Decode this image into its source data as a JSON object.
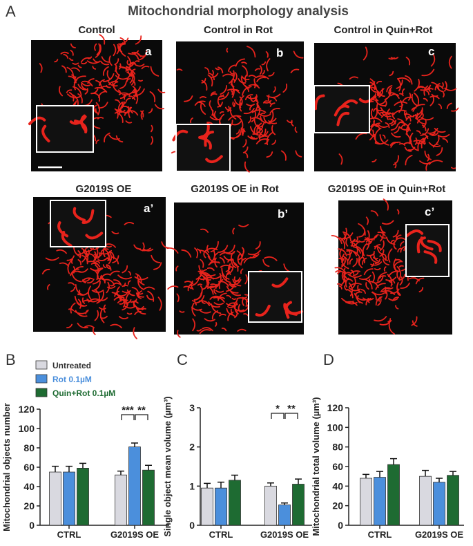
{
  "figure": {
    "title": "Mitochondrial morphology analysis",
    "panel_labels": [
      "A",
      "B",
      "C",
      "D"
    ]
  },
  "images": [
    {
      "title": "Control",
      "label": "a"
    },
    {
      "title": "Control in Rot",
      "label": "b"
    },
    {
      "title": "Control in Quin+Rot",
      "label": "c"
    },
    {
      "title": "G2019S OE",
      "label": "a’"
    },
    {
      "title": "G2019S OE in Rot",
      "label": "b’"
    },
    {
      "title": "G2019S OE in Quin+Rot",
      "label": "c’"
    }
  ],
  "chart_data": [
    {
      "type": "bar",
      "y_label": "Mitochondrial objects number",
      "categories": [
        "CTRL",
        "G2019S OE"
      ],
      "series": [
        {
          "name": "Untreated",
          "color": "#d9d9e0",
          "values": [
            55,
            52
          ],
          "errors": [
            6,
            4
          ]
        },
        {
          "name": "Rot 0.1µM",
          "color": "#4b8fdc",
          "values": [
            55,
            81
          ],
          "errors": [
            6,
            4
          ]
        },
        {
          "name": "Quin+Rot 0.1µM",
          "color": "#1e6b32",
          "values": [
            59,
            57
          ],
          "errors": [
            5,
            5
          ]
        }
      ],
      "ylim": [
        0,
        120
      ],
      "yticks": [
        0,
        20,
        40,
        60,
        80,
        100,
        120
      ],
      "annotations": [
        "***",
        "**"
      ]
    },
    {
      "type": "bar",
      "y_label": "Single object mean volume (µm³)",
      "categories": [
        "CTRL",
        "G2019S OE"
      ],
      "series": [
        {
          "color": "#d9d9e0",
          "values": [
            0.95,
            1.0
          ],
          "errors": [
            0.12,
            0.08
          ]
        },
        {
          "color": "#4b8fdc",
          "values": [
            0.95,
            0.52
          ],
          "errors": [
            0.15,
            0.05
          ]
        },
        {
          "color": "#1e6b32",
          "values": [
            1.15,
            1.05
          ],
          "errors": [
            0.13,
            0.13
          ]
        }
      ],
      "ylim": [
        0,
        3
      ],
      "yticks": [
        0,
        1,
        2,
        3
      ],
      "annotations": [
        "*",
        "**"
      ]
    },
    {
      "type": "bar",
      "y_label": "Mitochondrial total volume (µm³)",
      "categories": [
        "CTRL",
        "G2019S OE"
      ],
      "series": [
        {
          "color": "#d9d9e0",
          "values": [
            48,
            50
          ],
          "errors": [
            4,
            6
          ]
        },
        {
          "color": "#4b8fdc",
          "values": [
            49,
            44
          ],
          "errors": [
            6,
            4
          ]
        },
        {
          "color": "#1e6b32",
          "values": [
            62,
            51
          ],
          "errors": [
            6,
            4
          ]
        }
      ],
      "ylim": [
        0,
        120
      ],
      "yticks": [
        0,
        20,
        40,
        60,
        80,
        100,
        120
      ]
    }
  ]
}
